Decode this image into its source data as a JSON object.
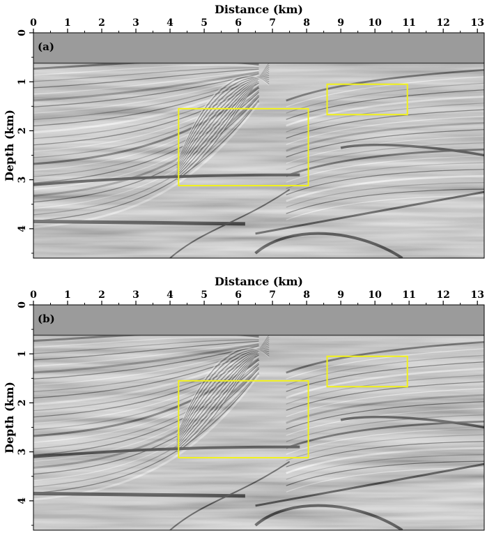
{
  "chart_data": [
    {
      "type": "seismic-image",
      "panel_label": "(a)",
      "xlabel": "Distance (km)",
      "ylabel": "Depth (km)",
      "xlim": [
        0,
        13.2
      ],
      "ylim": [
        0,
        4.6
      ],
      "y_inverted": true,
      "xticks": [
        "0",
        "1",
        "2",
        "3",
        "4",
        "5",
        "6",
        "7",
        "8",
        "9",
        "10",
        "11",
        "12",
        "13"
      ],
      "yticks": [
        "0",
        "1",
        "2",
        "3",
        "4"
      ],
      "water_bottom_depth_km": 0.62,
      "highlight_boxes": [
        {
          "x": [
            4.25,
            8.05
          ],
          "depth": [
            1.55,
            3.12
          ]
        },
        {
          "x": [
            8.6,
            10.95
          ],
          "depth": [
            1.05,
            1.67
          ]
        }
      ]
    },
    {
      "type": "seismic-image",
      "panel_label": "(b)",
      "xlabel": "Distance (km)",
      "ylabel": "Depth (km)",
      "xlim": [
        0,
        13.2
      ],
      "ylim": [
        0,
        4.6
      ],
      "y_inverted": true,
      "xticks": [
        "0",
        "1",
        "2",
        "3",
        "4",
        "5",
        "6",
        "7",
        "8",
        "9",
        "10",
        "11",
        "12",
        "13"
      ],
      "yticks": [
        "0",
        "1",
        "2",
        "3",
        "4"
      ],
      "water_bottom_depth_km": 0.62,
      "highlight_boxes": [
        {
          "x": [
            4.25,
            8.05
          ],
          "depth": [
            1.55,
            3.12
          ]
        },
        {
          "x": [
            8.6,
            10.95
          ],
          "depth": [
            1.05,
            1.67
          ]
        }
      ]
    }
  ],
  "colors": {
    "water": "#9b9b9b",
    "background": "#c8c8c8",
    "highlight_box": "#f2f21a"
  }
}
